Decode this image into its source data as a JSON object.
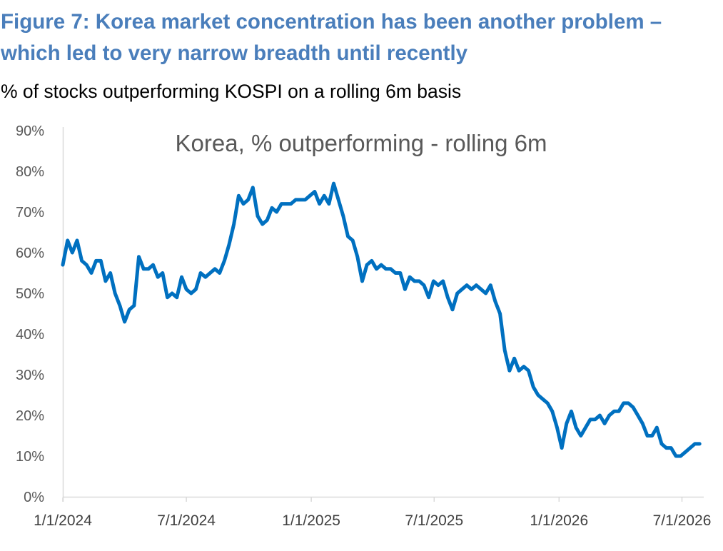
{
  "header": {
    "title_lines": [
      "Figure 7: Korea market concentration has been another problem –",
      "which led to very narrow breadth until recently"
    ],
    "subtitle": "% of stocks outperforming KOSPI on a rolling 6m basis"
  },
  "colors": {
    "title": "#4a7ebb",
    "series": "#0070c0"
  },
  "chart_data": {
    "type": "line",
    "title": "Korea, % outperforming - rolling 6m",
    "xlabel": "",
    "ylabel": "",
    "xlim": [
      "2024-01-01",
      "2026-08-01"
    ],
    "ylim": [
      0,
      90
    ],
    "yticks": [
      0,
      10,
      20,
      30,
      40,
      50,
      60,
      70,
      80,
      90
    ],
    "ytick_labels": [
      "0%",
      "10%",
      "20%",
      "30%",
      "40%",
      "50%",
      "60%",
      "70%",
      "80%",
      "90%"
    ],
    "xticks": [
      "2024-01-01",
      "2024-07-01",
      "2025-01-01",
      "2025-07-01",
      "2026-01-01",
      "2026-07-01"
    ],
    "xtick_labels": [
      "1/1/2024",
      "7/1/2024",
      "1/1/2025",
      "7/1/2025",
      "1/1/2026",
      "7/1/2026"
    ],
    "grid": false,
    "legend": "none",
    "x": [
      "2024-01-01",
      "2024-01-08",
      "2024-01-15",
      "2024-01-22",
      "2024-01-29",
      "2024-02-05",
      "2024-02-12",
      "2024-02-19",
      "2024-02-26",
      "2024-03-04",
      "2024-03-11",
      "2024-03-18",
      "2024-03-25",
      "2024-04-01",
      "2024-04-08",
      "2024-04-15",
      "2024-04-22",
      "2024-04-29",
      "2024-05-06",
      "2024-05-13",
      "2024-05-20",
      "2024-05-27",
      "2024-06-03",
      "2024-06-10",
      "2024-06-17",
      "2024-06-24",
      "2024-07-01",
      "2024-07-08",
      "2024-07-15",
      "2024-07-22",
      "2024-07-29",
      "2024-08-05",
      "2024-08-12",
      "2024-08-19",
      "2024-08-26",
      "2024-09-02",
      "2024-09-09",
      "2024-09-16",
      "2024-09-23",
      "2024-09-30",
      "2024-10-07",
      "2024-10-14",
      "2024-10-21",
      "2024-10-28",
      "2024-11-04",
      "2024-11-11",
      "2024-11-18",
      "2024-11-25",
      "2024-12-02",
      "2024-12-09",
      "2024-12-16",
      "2024-12-23",
      "2024-12-30",
      "2025-01-06",
      "2025-01-13",
      "2025-01-20",
      "2025-01-27",
      "2025-02-03",
      "2025-02-10",
      "2025-02-17",
      "2025-02-24",
      "2025-03-03",
      "2025-03-10",
      "2025-03-17",
      "2025-03-24",
      "2025-03-31",
      "2025-04-07",
      "2025-04-14",
      "2025-04-21",
      "2025-04-28",
      "2025-05-05",
      "2025-05-12",
      "2025-05-19",
      "2025-05-26",
      "2025-06-02",
      "2025-06-09",
      "2025-06-16",
      "2025-06-23",
      "2025-06-30",
      "2025-07-07",
      "2025-07-14",
      "2025-07-21",
      "2025-07-28",
      "2025-08-04",
      "2025-08-11",
      "2025-08-18",
      "2025-08-25",
      "2025-09-01",
      "2025-09-08",
      "2025-09-15",
      "2025-09-22",
      "2025-09-29",
      "2025-10-06",
      "2025-10-13",
      "2025-10-20",
      "2025-10-27",
      "2025-11-03",
      "2025-11-10",
      "2025-11-17",
      "2025-11-24",
      "2025-12-01",
      "2025-12-08",
      "2025-12-15",
      "2025-12-22",
      "2025-12-29",
      "2026-01-05",
      "2026-01-12",
      "2026-01-19",
      "2026-01-26",
      "2026-02-02",
      "2026-02-09",
      "2026-02-16",
      "2026-02-23",
      "2026-03-02",
      "2026-03-09",
      "2026-03-16",
      "2026-03-23",
      "2026-03-30",
      "2026-04-06",
      "2026-04-13",
      "2026-04-20",
      "2026-04-27",
      "2026-05-04",
      "2026-05-11",
      "2026-05-18",
      "2026-05-25",
      "2026-06-01",
      "2026-06-08",
      "2026-06-15",
      "2026-06-22",
      "2026-06-29",
      "2026-07-06",
      "2026-07-13",
      "2026-07-20",
      "2026-07-27"
    ],
    "series": [
      {
        "values": [
          57,
          63,
          60,
          63,
          58,
          57,
          55,
          58,
          58,
          53,
          55,
          50,
          47,
          43,
          46,
          47,
          59,
          56,
          56,
          57,
          54,
          55,
          49,
          50,
          49,
          54,
          51,
          50,
          51,
          55,
          54,
          55,
          56,
          55,
          58,
          62,
          67,
          74,
          72,
          73,
          76,
          69,
          67,
          68,
          71,
          70,
          72,
          72,
          72,
          73,
          73,
          73,
          74,
          75,
          72,
          74,
          72,
          77,
          73,
          69,
          64,
          63,
          59,
          53,
          57,
          58,
          56,
          57,
          56,
          56,
          55,
          55,
          51,
          54,
          53,
          53,
          52,
          49,
          53,
          52,
          53,
          49,
          46,
          50,
          51,
          52,
          51,
          52,
          51,
          50,
          52,
          48,
          45,
          36,
          31,
          34,
          31,
          32,
          31,
          27,
          25,
          24,
          23,
          21,
          17,
          12,
          18,
          21,
          17,
          15,
          17,
          19,
          19,
          20,
          18,
          20,
          21,
          21,
          23,
          23,
          22,
          20,
          18,
          15,
          15,
          17,
          13,
          12,
          12,
          10,
          10,
          11,
          12,
          13,
          13
        ]
      }
    ]
  }
}
